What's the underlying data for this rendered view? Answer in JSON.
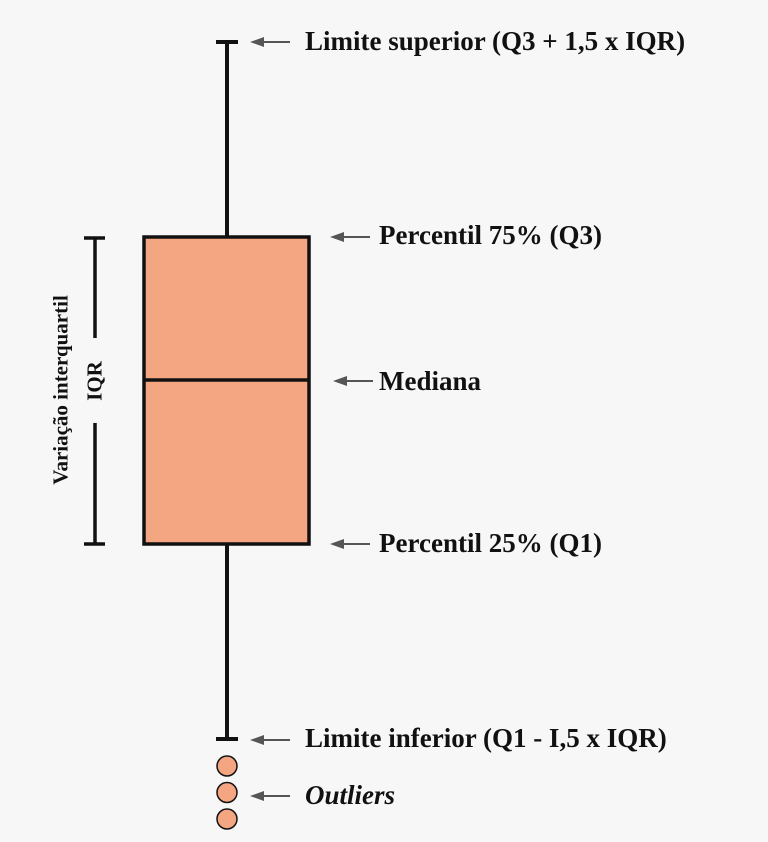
{
  "diagram": {
    "type": "boxplot-explainer",
    "labels": {
      "upper_limit": "Limite superior (Q3 + 1,5 x IQR)",
      "q3": "Percentil 75% (Q3)",
      "median": "Mediana",
      "q1": "Percentil 25% (Q1)",
      "lower_limit": "Limite inferior (Q1 - I,5 x IQR)",
      "outliers": "Outliers"
    },
    "iqr_bracket": {
      "title": "Variação interquartil",
      "abbr": "IQR"
    },
    "outlier_count": 3,
    "colors": {
      "box_fill": "#f4a582",
      "outlier_fill": "#f4a582",
      "stroke": "#111111",
      "arrow": "#555555",
      "background": "#f7f7f7"
    }
  }
}
